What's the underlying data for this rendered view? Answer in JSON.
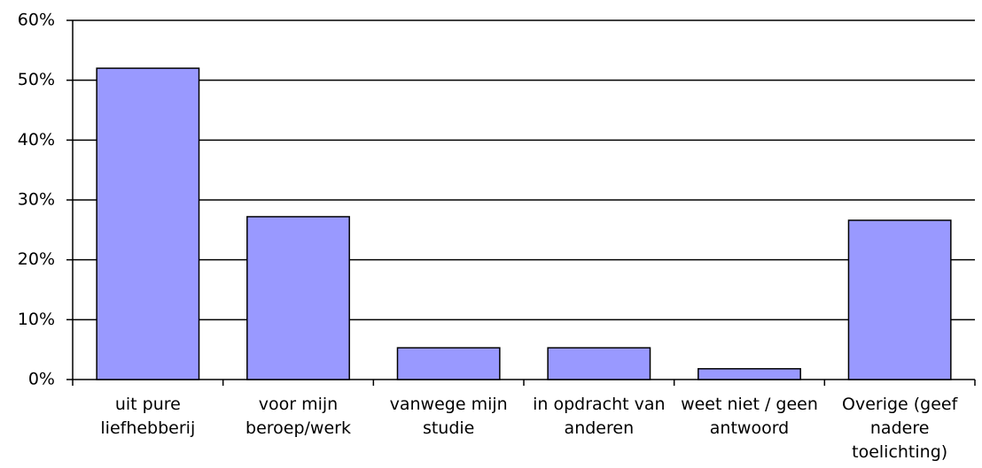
{
  "chart_data": {
    "type": "bar",
    "categories": [
      "uit pure liefhebberij",
      "voor mijn beroep/werk",
      "vanwege mijn studie",
      "in opdracht van anderen",
      "weet niet / geen antwoord",
      "Overige (geef nadere toelichting)"
    ],
    "values": [
      52,
      27.2,
      5.3,
      5.3,
      1.8,
      26.6
    ],
    "color": "#9999ff",
    "ylim": [
      0,
      60
    ],
    "yticks": [
      {
        "value": 0,
        "label": "0%"
      },
      {
        "value": 10,
        "label": "10%"
      },
      {
        "value": 20,
        "label": "20%"
      },
      {
        "value": 30,
        "label": "30%"
      },
      {
        "value": 40,
        "label": "40%"
      },
      {
        "value": 50,
        "label": "50%"
      },
      {
        "value": 60,
        "label": "60%"
      }
    ],
    "grid": true
  }
}
